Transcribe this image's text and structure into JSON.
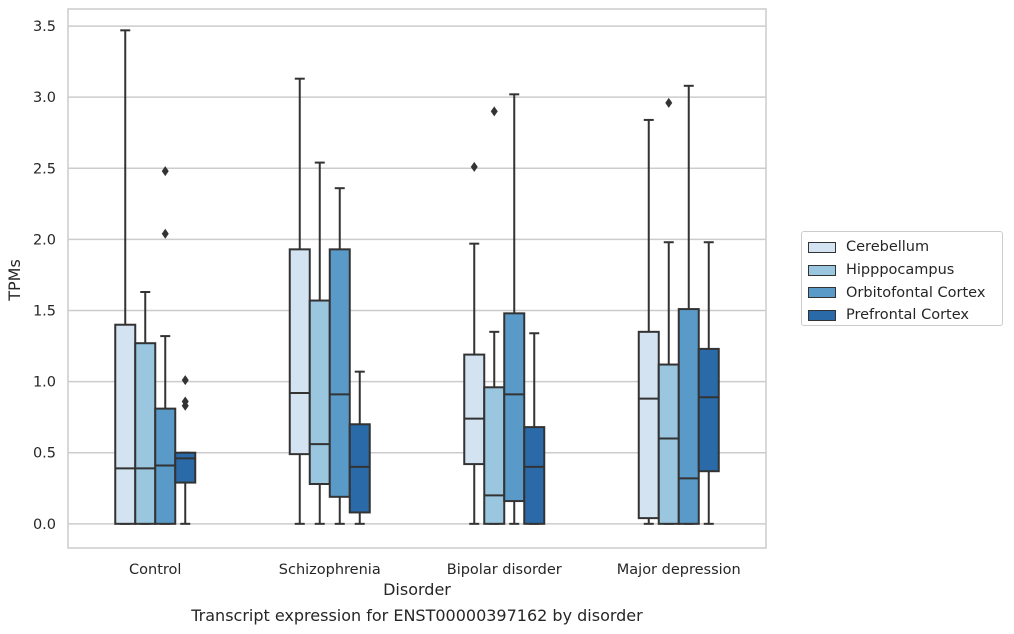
{
  "chart_data": {
    "type": "box",
    "caption": "Transcript expression for ENST00000397162 by disorder",
    "xlabel": "Disorder",
    "ylabel": "TPMs",
    "ylim": [
      -0.17,
      3.62
    ],
    "yticks": [
      "0.0",
      "0.5",
      "1.0",
      "1.5",
      "2.0",
      "2.5",
      "3.0",
      "3.5"
    ],
    "grid": true,
    "legend_position": "right",
    "categories": [
      "Control",
      "Schizophrenia",
      "Bipolar disorder",
      "Major depression"
    ],
    "series": [
      {
        "name": "Cerebellum",
        "color": "#d3e3f1",
        "boxes": [
          {
            "min": 0.0,
            "q1": 0.0,
            "median": 0.39,
            "q3": 1.4,
            "max": 3.47,
            "outliers": []
          },
          {
            "min": 0.0,
            "q1": 0.49,
            "median": 0.92,
            "q3": 1.93,
            "max": 3.13,
            "outliers": []
          },
          {
            "min": 0.0,
            "q1": 0.42,
            "median": 0.74,
            "q3": 1.19,
            "max": 1.97,
            "outliers": [
              2.51
            ]
          },
          {
            "min": 0.0,
            "q1": 0.04,
            "median": 0.88,
            "q3": 1.35,
            "max": 2.84,
            "outliers": []
          }
        ]
      },
      {
        "name": "Hipppocampus",
        "color": "#9ac6df",
        "boxes": [
          {
            "min": 0.0,
            "q1": 0.0,
            "median": 0.39,
            "q3": 1.27,
            "max": 1.63,
            "outliers": []
          },
          {
            "min": 0.0,
            "q1": 0.28,
            "median": 0.56,
            "q3": 1.57,
            "max": 2.54,
            "outliers": []
          },
          {
            "min": 0.0,
            "q1": 0.0,
            "median": 0.2,
            "q3": 0.96,
            "max": 1.35,
            "outliers": [
              2.9
            ]
          },
          {
            "min": 0.0,
            "q1": 0.0,
            "median": 0.6,
            "q3": 1.12,
            "max": 1.98,
            "outliers": [
              2.96
            ]
          }
        ]
      },
      {
        "name": "Orbitofontal Cortex",
        "color": "#5a9ac8",
        "boxes": [
          {
            "min": 0.0,
            "q1": 0.0,
            "median": 0.41,
            "q3": 0.81,
            "max": 1.32,
            "outliers": [
              2.04,
              2.48
            ]
          },
          {
            "min": 0.0,
            "q1": 0.19,
            "median": 0.91,
            "q3": 1.93,
            "max": 2.36,
            "outliers": []
          },
          {
            "min": 0.0,
            "q1": 0.16,
            "median": 0.91,
            "q3": 1.48,
            "max": 3.02,
            "outliers": []
          },
          {
            "min": 0.0,
            "q1": 0.0,
            "median": 0.32,
            "q3": 1.51,
            "max": 3.08,
            "outliers": []
          }
        ]
      },
      {
        "name": "Prefrontal Cortex",
        "color": "#2b6aa8",
        "boxes": [
          {
            "min": 0.0,
            "q1": 0.29,
            "median": 0.46,
            "q3": 0.5,
            "max": 0.5,
            "outliers": [
              0.83,
              0.86,
              1.01
            ]
          },
          {
            "min": 0.0,
            "q1": 0.08,
            "median": 0.4,
            "q3": 0.7,
            "max": 1.07,
            "outliers": []
          },
          {
            "min": 0.0,
            "q1": 0.0,
            "median": 0.4,
            "q3": 0.68,
            "max": 1.34,
            "outliers": []
          },
          {
            "min": 0.0,
            "q1": 0.37,
            "median": 0.89,
            "q3": 1.23,
            "max": 1.98,
            "outliers": []
          }
        ]
      }
    ]
  }
}
